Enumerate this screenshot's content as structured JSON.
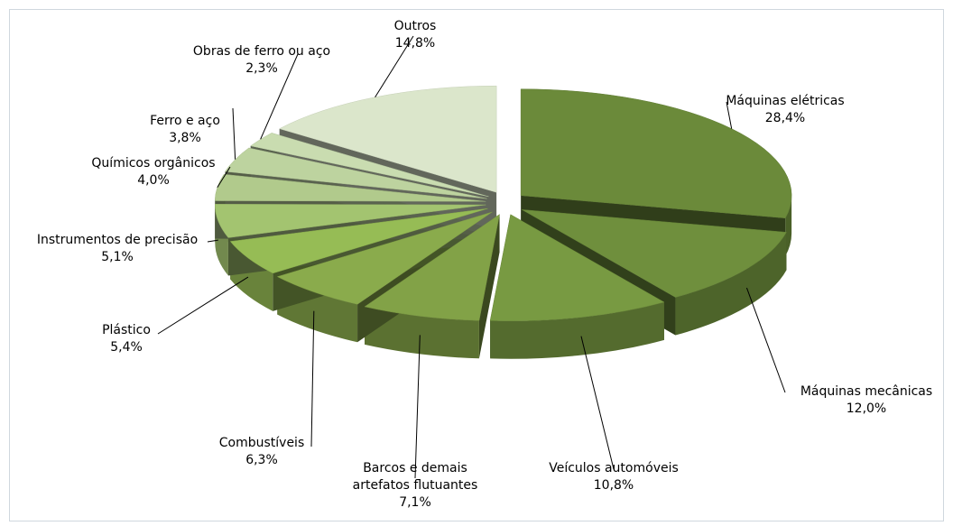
{
  "chart_data": {
    "type": "pie",
    "categories": [
      "Máquinas elétricas",
      "Máquinas mecânicas",
      "Veículos automóveis",
      "Barcos e demais artefatos flutuantes",
      "Combustíveis",
      "Plástico",
      "Instrumentos de precisão",
      "Químicos orgânicos",
      "Ferro e aço",
      "Obras de ferro ou aço",
      "Outros"
    ],
    "values": [
      28.4,
      12.0,
      10.8,
      7.1,
      6.3,
      5.4,
      5.1,
      4.0,
      3.8,
      2.3,
      14.8
    ],
    "value_labels": [
      "28,4%",
      "12,0%",
      "10,8%",
      "7,1%",
      "6,3%",
      "5,4%",
      "5,1%",
      "4,0%",
      "3,8%",
      "2,3%",
      "14,8%"
    ],
    "colors": [
      "#6b8a3a",
      "#6f8f3d",
      "#789a42",
      "#82a247",
      "#8aab4c",
      "#96bc55",
      "#a3c470",
      "#b1ca8c",
      "#bdd39f",
      "#c9dcb0",
      "#dbe6cb"
    ]
  }
}
